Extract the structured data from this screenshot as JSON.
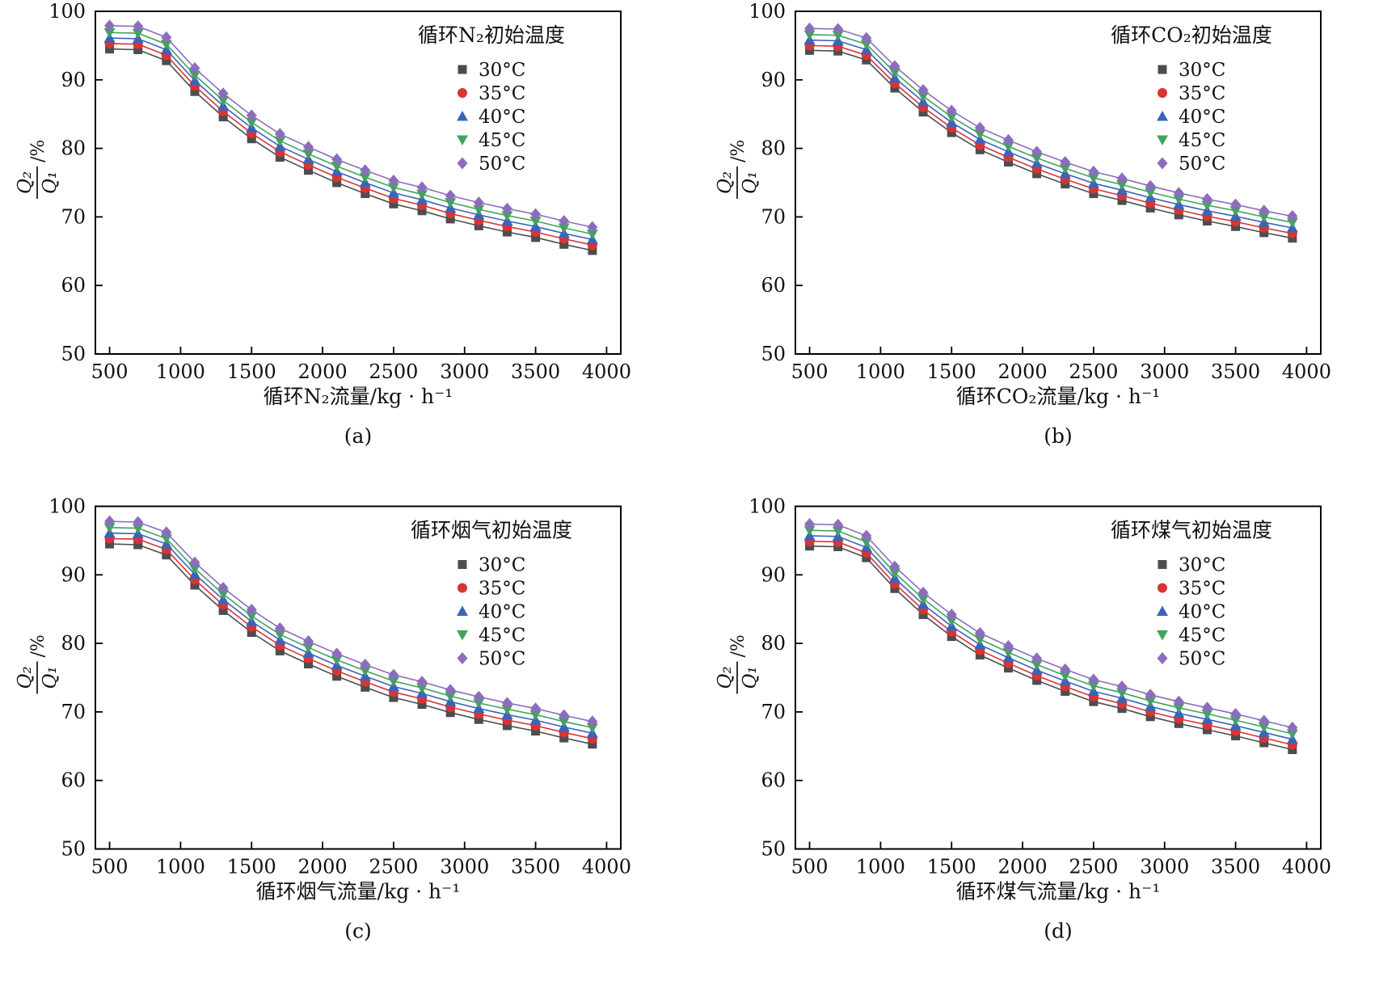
{
  "page": {
    "background": "#ffffff"
  },
  "chart_data": [
    {
      "id": "a",
      "type": "scatter",
      "caption": "(a)",
      "legend_title": "循环N₂初始温度",
      "legend_position": "upper-right",
      "xlabel": "循环N₂流量/kg · h⁻¹",
      "ylabel_numerator": "Q₂",
      "ylabel_denominator": "Q₁",
      "ylabel_suffix": "/%",
      "xlim": [
        400,
        4100
      ],
      "ylim": [
        50,
        100
      ],
      "xticks": [
        500,
        1000,
        1500,
        2000,
        2500,
        3000,
        3500,
        4000
      ],
      "yticks": [
        50,
        60,
        70,
        80,
        90,
        100
      ],
      "grid": false,
      "x": [
        500,
        700,
        900,
        1100,
        1300,
        1500,
        1700,
        1900,
        2100,
        2300,
        2500,
        2700,
        2900,
        3100,
        3300,
        3500,
        3700,
        3900
      ],
      "series": [
        {
          "name": "30°C",
          "marker": "square",
          "color": "#4d4d4d",
          "values": [
            94.5,
            94.4,
            92.8,
            88.3,
            84.6,
            81.4,
            78.7,
            76.8,
            75.0,
            73.4,
            71.9,
            70.9,
            69.7,
            68.7,
            67.8,
            67.0,
            66.0,
            65.1
          ]
        },
        {
          "name": "35°C",
          "marker": "circle",
          "color": "#d83434",
          "values": [
            95.3,
            95.2,
            93.6,
            89.1,
            85.4,
            82.2,
            79.5,
            77.6,
            75.8,
            74.2,
            72.7,
            71.7,
            70.5,
            69.5,
            68.6,
            67.8,
            66.8,
            65.9
          ]
        },
        {
          "name": "40°C",
          "marker": "triangle-up",
          "color": "#3b63b8",
          "values": [
            96.1,
            96.0,
            94.4,
            89.9,
            86.2,
            83.0,
            80.3,
            78.4,
            76.6,
            75.0,
            73.5,
            72.5,
            71.3,
            70.3,
            69.4,
            68.6,
            67.6,
            66.7
          ]
        },
        {
          "name": "45°C",
          "marker": "triangle-down",
          "color": "#42a35c",
          "values": [
            96.9,
            96.8,
            95.2,
            90.7,
            87.0,
            83.8,
            81.1,
            79.2,
            77.4,
            75.8,
            74.3,
            73.3,
            72.1,
            71.1,
            70.2,
            69.4,
            68.4,
            67.5
          ]
        },
        {
          "name": "50°C",
          "marker": "diamond",
          "color": "#8d6cbe",
          "values": [
            97.9,
            97.8,
            96.2,
            91.7,
            88.0,
            84.8,
            82.1,
            80.2,
            78.4,
            76.8,
            75.3,
            74.3,
            73.1,
            72.1,
            71.2,
            70.4,
            69.4,
            68.5
          ]
        }
      ]
    },
    {
      "id": "b",
      "type": "scatter",
      "caption": "(b)",
      "legend_title": "循环CO₂初始温度",
      "legend_position": "upper-right",
      "xlabel": "循环CO₂流量/kg · h⁻¹",
      "ylabel_numerator": "Q₂",
      "ylabel_denominator": "Q₁",
      "ylabel_suffix": "/%",
      "xlim": [
        400,
        4100
      ],
      "ylim": [
        50,
        100
      ],
      "xticks": [
        500,
        1000,
        1500,
        2000,
        2500,
        3000,
        3500,
        4000
      ],
      "yticks": [
        50,
        60,
        70,
        80,
        90,
        100
      ],
      "grid": false,
      "x": [
        500,
        700,
        900,
        1100,
        1300,
        1500,
        1700,
        1900,
        2100,
        2300,
        2500,
        2700,
        2900,
        3100,
        3300,
        3500,
        3700,
        3900
      ],
      "series": [
        {
          "name": "30°C",
          "marker": "square",
          "color": "#4d4d4d",
          "values": [
            94.3,
            94.2,
            92.9,
            88.8,
            85.3,
            82.3,
            79.8,
            78.0,
            76.3,
            74.8,
            73.4,
            72.4,
            71.3,
            70.3,
            69.4,
            68.6,
            67.7,
            66.9
          ]
        },
        {
          "name": "35°C",
          "marker": "circle",
          "color": "#d83434",
          "values": [
            95.0,
            94.9,
            93.6,
            89.5,
            86.0,
            83.0,
            80.5,
            78.7,
            77.0,
            75.5,
            74.1,
            73.1,
            72.0,
            71.0,
            70.1,
            69.3,
            68.4,
            67.6
          ]
        },
        {
          "name": "40°C",
          "marker": "triangle-up",
          "color": "#3b63b8",
          "values": [
            95.8,
            95.7,
            94.4,
            90.3,
            86.8,
            83.8,
            81.3,
            79.5,
            77.8,
            76.3,
            74.9,
            73.9,
            72.8,
            71.8,
            70.9,
            70.1,
            69.2,
            68.4
          ]
        },
        {
          "name": "45°C",
          "marker": "triangle-down",
          "color": "#42a35c",
          "values": [
            96.6,
            96.5,
            95.2,
            91.1,
            87.6,
            84.6,
            82.1,
            80.3,
            78.6,
            77.1,
            75.7,
            74.7,
            73.6,
            72.6,
            71.7,
            70.9,
            70.0,
            69.2
          ]
        },
        {
          "name": "50°C",
          "marker": "diamond",
          "color": "#8d6cbe",
          "values": [
            97.5,
            97.4,
            96.1,
            92.0,
            88.5,
            85.5,
            83.0,
            81.2,
            79.5,
            78.0,
            76.6,
            75.6,
            74.5,
            73.5,
            72.6,
            71.8,
            70.9,
            70.1
          ]
        }
      ]
    },
    {
      "id": "c",
      "type": "scatter",
      "caption": "(c)",
      "legend_title": "循环烟气初始温度",
      "legend_position": "upper-right",
      "xlabel": "循环烟气流量/kg · h⁻¹",
      "ylabel_numerator": "Q₂",
      "ylabel_denominator": "Q₁",
      "ylabel_suffix": "/%",
      "xlim": [
        400,
        4100
      ],
      "ylim": [
        50,
        100
      ],
      "xticks": [
        500,
        1000,
        1500,
        2000,
        2500,
        3000,
        3500,
        4000
      ],
      "yticks": [
        50,
        60,
        70,
        80,
        90,
        100
      ],
      "grid": false,
      "x": [
        500,
        700,
        900,
        1100,
        1300,
        1500,
        1700,
        1900,
        2100,
        2300,
        2500,
        2700,
        2900,
        3100,
        3300,
        3500,
        3700,
        3900
      ],
      "series": [
        {
          "name": "30°C",
          "marker": "square",
          "color": "#4d4d4d",
          "values": [
            94.5,
            94.4,
            92.9,
            88.5,
            84.8,
            81.6,
            78.9,
            77.0,
            75.2,
            73.6,
            72.1,
            71.1,
            69.9,
            68.9,
            68.0,
            67.2,
            66.2,
            65.3
          ]
        },
        {
          "name": "35°C",
          "marker": "circle",
          "color": "#d83434",
          "values": [
            95.3,
            95.2,
            93.7,
            89.3,
            85.6,
            82.4,
            79.7,
            77.8,
            76.0,
            74.4,
            72.9,
            71.9,
            70.7,
            69.7,
            68.8,
            68.0,
            67.0,
            66.1
          ]
        },
        {
          "name": "40°C",
          "marker": "triangle-up",
          "color": "#3b63b8",
          "values": [
            96.1,
            96.0,
            94.5,
            90.1,
            86.4,
            83.2,
            80.5,
            78.6,
            76.8,
            75.2,
            73.7,
            72.7,
            71.5,
            70.5,
            69.6,
            68.8,
            67.8,
            66.9
          ]
        },
        {
          "name": "45°C",
          "marker": "triangle-down",
          "color": "#42a35c",
          "values": [
            96.9,
            96.8,
            95.3,
            90.9,
            87.2,
            84.0,
            81.3,
            79.4,
            77.6,
            76.0,
            74.5,
            73.5,
            72.3,
            71.3,
            70.4,
            69.6,
            68.6,
            67.7
          ]
        },
        {
          "name": "50°C",
          "marker": "diamond",
          "color": "#8d6cbe",
          "values": [
            97.8,
            97.7,
            96.2,
            91.8,
            88.1,
            84.9,
            82.2,
            80.3,
            78.5,
            76.9,
            75.4,
            74.4,
            73.2,
            72.2,
            71.3,
            70.5,
            69.5,
            68.6
          ]
        }
      ]
    },
    {
      "id": "d",
      "type": "scatter",
      "caption": "(d)",
      "legend_title": "循环煤气初始温度",
      "legend_position": "upper-right",
      "xlabel": "循环煤气流量/kg · h⁻¹",
      "ylabel_numerator": "Q₂",
      "ylabel_denominator": "Q₁",
      "ylabel_suffix": "/%",
      "xlim": [
        400,
        4100
      ],
      "ylim": [
        50,
        100
      ],
      "xticks": [
        500,
        1000,
        1500,
        2000,
        2500,
        3000,
        3500,
        4000
      ],
      "yticks": [
        50,
        60,
        70,
        80,
        90,
        100
      ],
      "grid": false,
      "x": [
        500,
        700,
        900,
        1100,
        1300,
        1500,
        1700,
        1900,
        2100,
        2300,
        2500,
        2700,
        2900,
        3100,
        3300,
        3500,
        3700,
        3900
      ],
      "series": [
        {
          "name": "30°C",
          "marker": "square",
          "color": "#4d4d4d",
          "values": [
            94.2,
            94.1,
            92.5,
            88.0,
            84.2,
            81.0,
            78.3,
            76.4,
            74.6,
            73.0,
            71.5,
            70.5,
            69.3,
            68.3,
            67.4,
            66.5,
            65.5,
            64.5
          ]
        },
        {
          "name": "35°C",
          "marker": "circle",
          "color": "#d83434",
          "values": [
            94.9,
            94.8,
            93.2,
            88.7,
            84.9,
            81.7,
            79.0,
            77.1,
            75.3,
            73.7,
            72.2,
            71.2,
            70.0,
            69.0,
            68.1,
            67.2,
            66.2,
            65.2
          ]
        },
        {
          "name": "40°C",
          "marker": "triangle-up",
          "color": "#3b63b8",
          "values": [
            95.7,
            95.6,
            94.0,
            89.5,
            85.7,
            82.5,
            79.8,
            77.9,
            76.1,
            74.5,
            73.0,
            72.0,
            70.8,
            69.8,
            68.9,
            68.0,
            67.0,
            66.0
          ]
        },
        {
          "name": "45°C",
          "marker": "triangle-down",
          "color": "#42a35c",
          "values": [
            96.5,
            96.4,
            94.8,
            90.3,
            86.5,
            83.3,
            80.6,
            78.7,
            76.9,
            75.3,
            73.8,
            72.8,
            71.6,
            70.6,
            69.7,
            68.8,
            67.8,
            66.8
          ]
        },
        {
          "name": "50°C",
          "marker": "diamond",
          "color": "#8d6cbe",
          "values": [
            97.4,
            97.3,
            95.7,
            91.2,
            87.4,
            84.2,
            81.5,
            79.6,
            77.8,
            76.2,
            74.7,
            73.7,
            72.5,
            71.5,
            70.6,
            69.7,
            68.7,
            67.7
          ]
        }
      ]
    }
  ]
}
